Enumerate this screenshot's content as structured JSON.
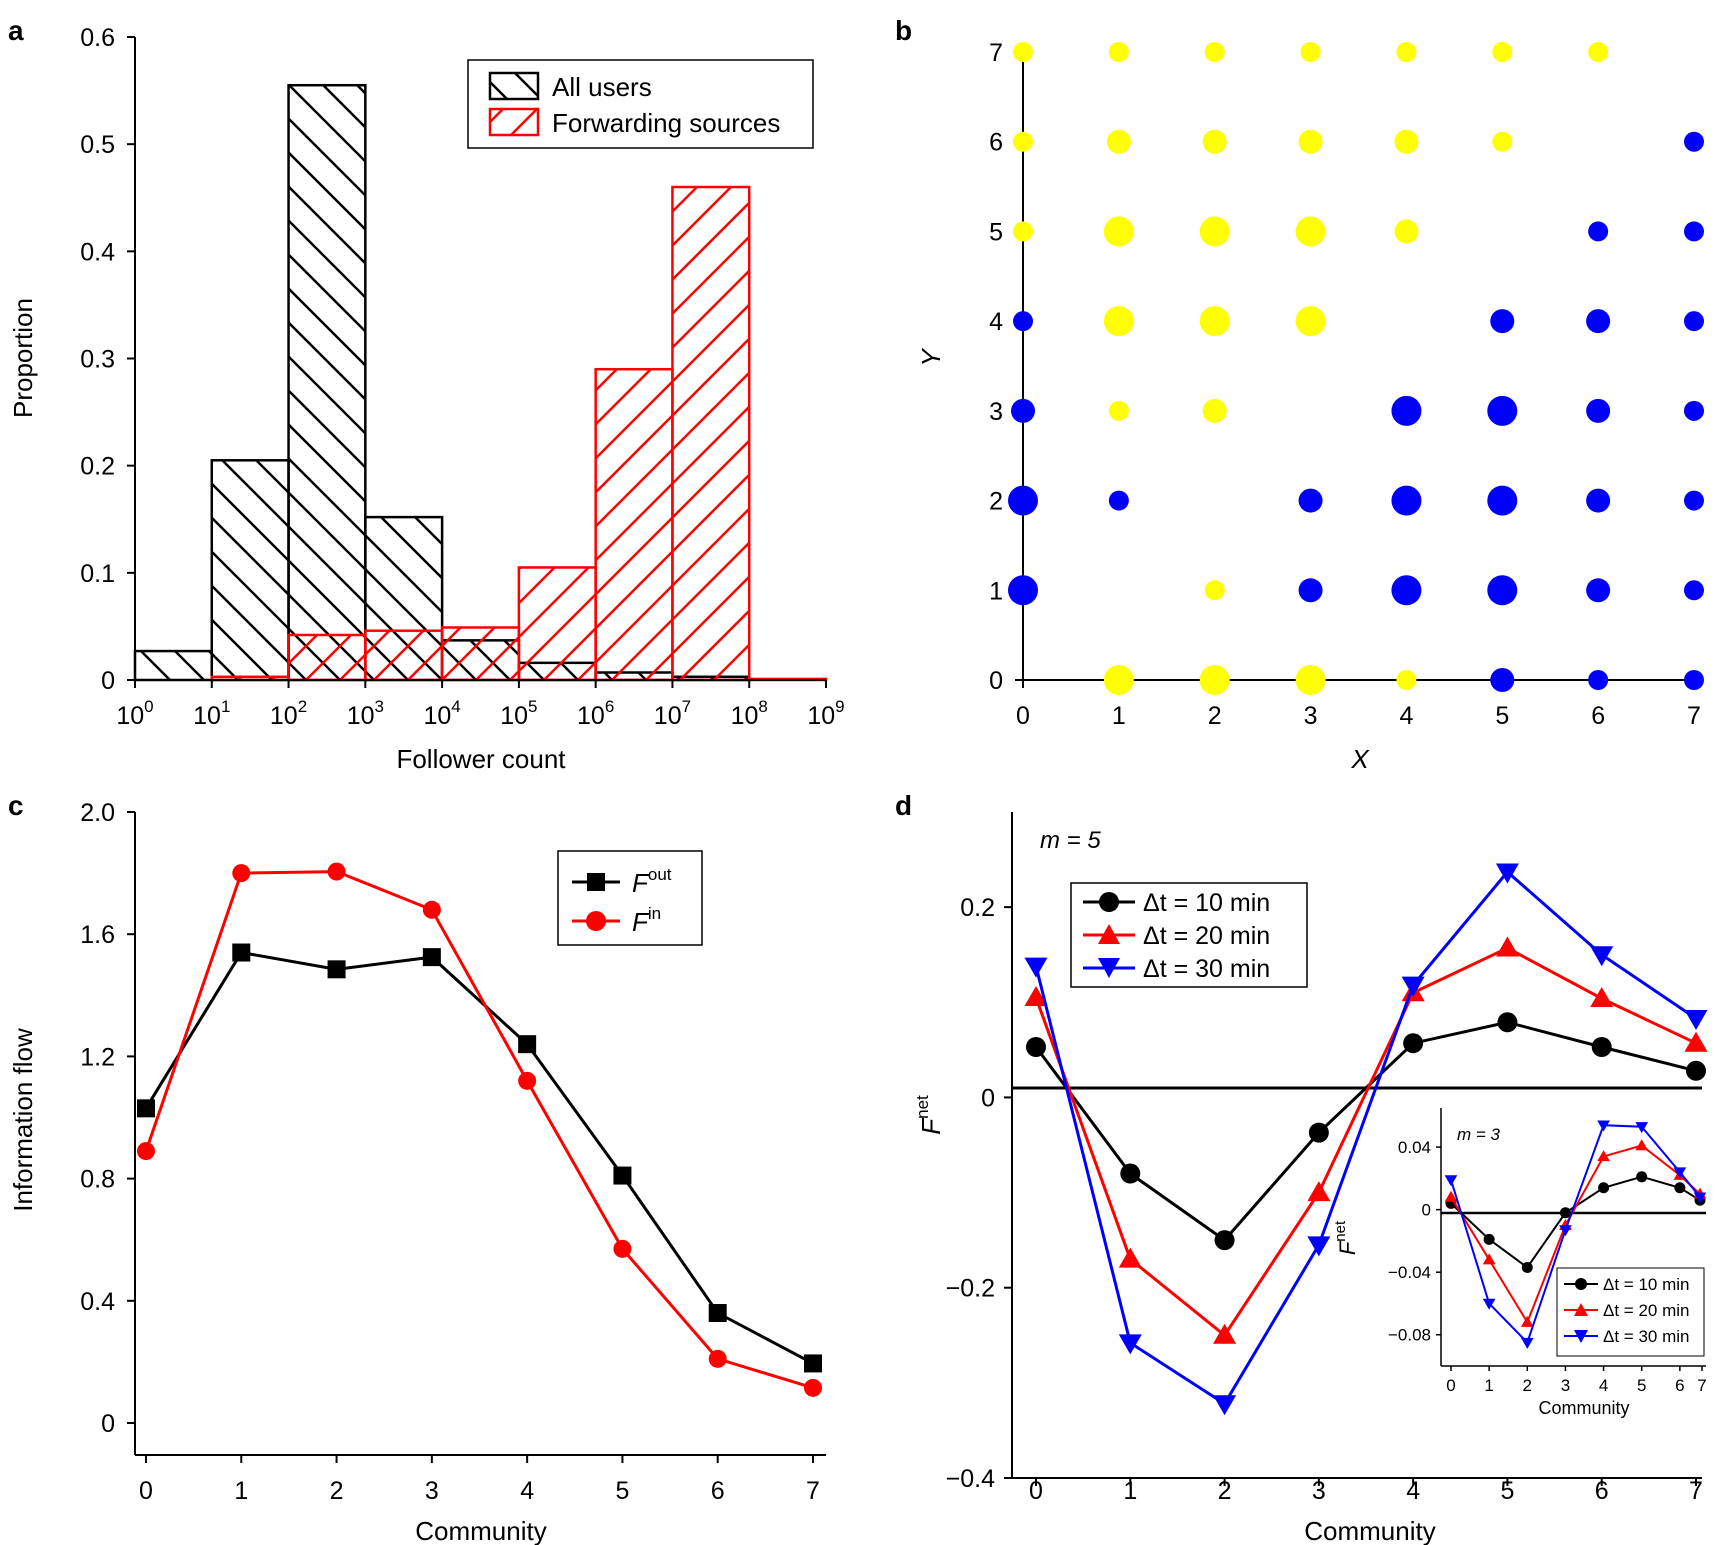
{
  "figure_size_note": "4-panel scientific figure",
  "colors": {
    "black": "#000000",
    "red": "#ff0000",
    "blue": "#0000ff",
    "yellow": "#ffff00"
  },
  "chart_data": [
    {
      "id": "a",
      "panel_label": "a",
      "type": "bar",
      "title": "",
      "xlabel": "Follower count",
      "ylabel": "Proportion",
      "xscale": "log10",
      "xlim_exp": [
        0,
        9
      ],
      "x_tick_base": "10",
      "x_tick_exponents": [
        "0",
        "1",
        "2",
        "3",
        "4",
        "5",
        "6",
        "7",
        "8",
        "9"
      ],
      "ylim": [
        0,
        0.6
      ],
      "y_ticks": [
        0,
        0.1,
        0.2,
        0.3,
        0.4,
        0.5,
        0.6
      ],
      "y_tick_labels": [
        "0",
        "0.1",
        "0.2",
        "0.3",
        "0.4",
        "0.5",
        "0.6"
      ],
      "legend_position": "top-right",
      "bin_edges_exp": [
        0,
        1,
        2,
        3,
        4,
        5,
        6,
        7,
        8,
        9
      ],
      "series": [
        {
          "name": "All users",
          "color": "#000000",
          "hatch": "backslash",
          "values": [
            0.027,
            0.205,
            0.555,
            0.152,
            0.037,
            0.016,
            0.007,
            0.003,
            0.0
          ]
        },
        {
          "name": "Forwarding sources",
          "color": "#ff0000",
          "hatch": "slash",
          "values": [
            0.0,
            0.003,
            0.042,
            0.046,
            0.049,
            0.105,
            0.29,
            0.46,
            0.001
          ]
        }
      ]
    },
    {
      "id": "b",
      "panel_label": "b",
      "type": "scatter",
      "xlabel": "X",
      "ylabel": "Y",
      "xlim": [
        0,
        7
      ],
      "ylim": [
        0,
        7
      ],
      "x_ticks": [
        0,
        1,
        2,
        3,
        4,
        5,
        6,
        7
      ],
      "y_ticks": [
        0,
        1,
        2,
        3,
        4,
        5,
        6,
        7
      ],
      "size_levels": "1 = small, 2 = medium, 3 = large",
      "points": [
        {
          "x": 0,
          "y": 7,
          "color": "yellow",
          "size": 1
        },
        {
          "x": 1,
          "y": 7,
          "color": "yellow",
          "size": 1
        },
        {
          "x": 2,
          "y": 7,
          "color": "yellow",
          "size": 1
        },
        {
          "x": 3,
          "y": 7,
          "color": "yellow",
          "size": 1
        },
        {
          "x": 4,
          "y": 7,
          "color": "yellow",
          "size": 1
        },
        {
          "x": 5,
          "y": 7,
          "color": "yellow",
          "size": 1
        },
        {
          "x": 6,
          "y": 7,
          "color": "yellow",
          "size": 1
        },
        {
          "x": 0,
          "y": 6,
          "color": "yellow",
          "size": 1
        },
        {
          "x": 1,
          "y": 6,
          "color": "yellow",
          "size": 2
        },
        {
          "x": 2,
          "y": 6,
          "color": "yellow",
          "size": 2
        },
        {
          "x": 3,
          "y": 6,
          "color": "yellow",
          "size": 2
        },
        {
          "x": 4,
          "y": 6,
          "color": "yellow",
          "size": 2
        },
        {
          "x": 5,
          "y": 6,
          "color": "yellow",
          "size": 1
        },
        {
          "x": 7,
          "y": 6,
          "color": "blue",
          "size": 1
        },
        {
          "x": 0,
          "y": 5,
          "color": "yellow",
          "size": 1
        },
        {
          "x": 1,
          "y": 5,
          "color": "yellow",
          "size": 3
        },
        {
          "x": 2,
          "y": 5,
          "color": "yellow",
          "size": 3
        },
        {
          "x": 3,
          "y": 5,
          "color": "yellow",
          "size": 3
        },
        {
          "x": 4,
          "y": 5,
          "color": "yellow",
          "size": 2
        },
        {
          "x": 6,
          "y": 5,
          "color": "blue",
          "size": 1
        },
        {
          "x": 7,
          "y": 5,
          "color": "blue",
          "size": 1
        },
        {
          "x": 0,
          "y": 4,
          "color": "blue",
          "size": 1
        },
        {
          "x": 1,
          "y": 4,
          "color": "yellow",
          "size": 3
        },
        {
          "x": 2,
          "y": 4,
          "color": "yellow",
          "size": 3
        },
        {
          "x": 3,
          "y": 4,
          "color": "yellow",
          "size": 3
        },
        {
          "x": 5,
          "y": 4,
          "color": "blue",
          "size": 2
        },
        {
          "x": 6,
          "y": 4,
          "color": "blue",
          "size": 2
        },
        {
          "x": 7,
          "y": 4,
          "color": "blue",
          "size": 1
        },
        {
          "x": 0,
          "y": 3,
          "color": "blue",
          "size": 2
        },
        {
          "x": 1,
          "y": 3,
          "color": "yellow",
          "size": 1
        },
        {
          "x": 2,
          "y": 3,
          "color": "yellow",
          "size": 2
        },
        {
          "x": 4,
          "y": 3,
          "color": "blue",
          "size": 3
        },
        {
          "x": 5,
          "y": 3,
          "color": "blue",
          "size": 3
        },
        {
          "x": 6,
          "y": 3,
          "color": "blue",
          "size": 2
        },
        {
          "x": 7,
          "y": 3,
          "color": "blue",
          "size": 1
        },
        {
          "x": 0,
          "y": 2,
          "color": "blue",
          "size": 3
        },
        {
          "x": 1,
          "y": 2,
          "color": "blue",
          "size": 1
        },
        {
          "x": 3,
          "y": 2,
          "color": "blue",
          "size": 2
        },
        {
          "x": 4,
          "y": 2,
          "color": "blue",
          "size": 3
        },
        {
          "x": 5,
          "y": 2,
          "color": "blue",
          "size": 3
        },
        {
          "x": 6,
          "y": 2,
          "color": "blue",
          "size": 2
        },
        {
          "x": 7,
          "y": 2,
          "color": "blue",
          "size": 1
        },
        {
          "x": 0,
          "y": 1,
          "color": "blue",
          "size": 3
        },
        {
          "x": 2,
          "y": 1,
          "color": "yellow",
          "size": 1
        },
        {
          "x": 3,
          "y": 1,
          "color": "blue",
          "size": 2
        },
        {
          "x": 4,
          "y": 1,
          "color": "blue",
          "size": 3
        },
        {
          "x": 5,
          "y": 1,
          "color": "blue",
          "size": 3
        },
        {
          "x": 6,
          "y": 1,
          "color": "blue",
          "size": 2
        },
        {
          "x": 7,
          "y": 1,
          "color": "blue",
          "size": 1
        },
        {
          "x": 1,
          "y": 0,
          "color": "yellow",
          "size": 3
        },
        {
          "x": 2,
          "y": 0,
          "color": "yellow",
          "size": 3
        },
        {
          "x": 3,
          "y": 0,
          "color": "yellow",
          "size": 3
        },
        {
          "x": 4,
          "y": 0,
          "color": "yellow",
          "size": 1
        },
        {
          "x": 5,
          "y": 0,
          "color": "blue",
          "size": 2
        },
        {
          "x": 6,
          "y": 0,
          "color": "blue",
          "size": 1
        },
        {
          "x": 7,
          "y": 0,
          "color": "blue",
          "size": 1
        }
      ]
    },
    {
      "id": "c",
      "panel_label": "c",
      "type": "line",
      "xlabel": "Community",
      "ylabel": "Information flow",
      "x": [
        0,
        1,
        2,
        3,
        4,
        5,
        6,
        7
      ],
      "xlim": [
        0,
        7
      ],
      "ylim": [
        0,
        2.0
      ],
      "y_ticks": [
        0,
        0.4,
        0.8,
        1.2,
        1.6,
        2.0
      ],
      "y_tick_labels": [
        "0",
        "0.4",
        "0.8",
        "1.2",
        "1.6",
        "2.0"
      ],
      "legend_position": "top-right",
      "series": [
        {
          "name": "F",
          "sup": "out",
          "color": "#000000",
          "marker": "square",
          "values": [
            1.03,
            1.54,
            1.485,
            1.525,
            1.24,
            0.81,
            0.36,
            0.195
          ]
        },
        {
          "name": "F",
          "sup": "in",
          "color": "#ff0000",
          "marker": "circle",
          "values": [
            0.89,
            1.8,
            1.805,
            1.68,
            1.12,
            0.57,
            0.21,
            0.115
          ]
        }
      ]
    },
    {
      "id": "d",
      "panel_label": "d",
      "type": "line",
      "xlabel": "Community",
      "ylabel": "F",
      "ylabel_sup": "net",
      "annotation": "m = 5",
      "x": [
        0,
        1,
        2,
        3,
        4,
        5,
        6,
        7
      ],
      "ylim": [
        -0.4,
        0.3
      ],
      "y_ticks": [
        -0.4,
        -0.2,
        0,
        0.2
      ],
      "y_tick_labels": [
        "−0.4",
        "−0.2",
        "0",
        "0.2"
      ],
      "legend_position": "top-left",
      "series": [
        {
          "name": "Δt = 10 min",
          "color": "#000000",
          "marker": "circle",
          "values": [
            0.053,
            -0.08,
            -0.15,
            -0.037,
            0.057,
            0.079,
            0.053,
            0.028
          ]
        },
        {
          "name": "Δt = 20 min",
          "color": "#ff0000",
          "marker": "triangle-up",
          "values": [
            0.105,
            -0.17,
            -0.25,
            -0.1,
            0.11,
            0.157,
            0.104,
            0.057
          ]
        },
        {
          "name": "Δt = 30 min",
          "color": "#0000ff",
          "marker": "triangle-down",
          "values": [
            0.138,
            -0.258,
            -0.322,
            -0.155,
            0.118,
            0.237,
            0.15,
            0.083
          ]
        }
      ],
      "inset": {
        "type": "line",
        "xlabel": "Community",
        "ylabel": "F",
        "ylabel_sup": "net",
        "annotation": "m = 3",
        "x": [
          0,
          1,
          2,
          3,
          4,
          5,
          6,
          7
        ],
        "ylim": [
          -0.1,
          0.065
        ],
        "y_ticks": [
          -0.08,
          -0.04,
          0,
          0.04
        ],
        "y_tick_labels": [
          "−0.08",
          "−0.04",
          "0",
          "0.04"
        ],
        "legend_position": "bottom-right",
        "series": [
          {
            "name": "Δt = 10 min",
            "color": "#000000",
            "marker": "circle",
            "values": [
              0.004,
              -0.019,
              -0.037,
              -0.002,
              0.014,
              0.021,
              0.014,
              0.006
            ]
          },
          {
            "name": "Δt = 20 min",
            "color": "#ff0000",
            "marker": "triangle-up",
            "values": [
              0.008,
              -0.032,
              -0.072,
              -0.01,
              0.034,
              0.041,
              0.022,
              0.01
            ]
          },
          {
            "name": "Δt = 30 min",
            "color": "#0000ff",
            "marker": "triangle-down",
            "values": [
              0.019,
              -0.06,
              -0.085,
              -0.013,
              0.054,
              0.053,
              0.024,
              0.008
            ]
          }
        ]
      }
    }
  ]
}
